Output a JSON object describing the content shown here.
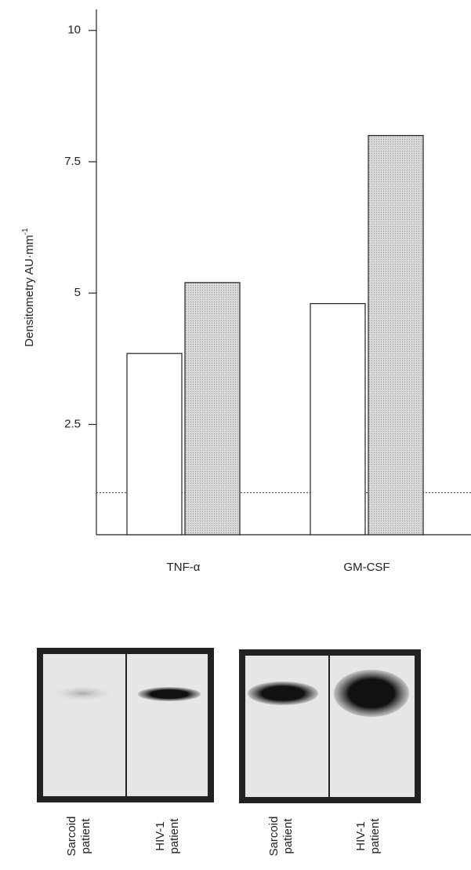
{
  "chart_data": {
    "type": "bar",
    "y_label": "Densitometry AU·mm",
    "y_label_superscript": "-1",
    "categories": [
      "TNF-α",
      "GM-CSF"
    ],
    "series": [
      {
        "color": "#ffffff",
        "values": [
          3.85,
          4.8
        ]
      },
      {
        "color": "#cfcfcf",
        "values": [
          5.2,
          8.0
        ]
      }
    ],
    "ylim": [
      0.4,
      10.4
    ],
    "yticks": [
      2.5,
      5,
      7.5,
      10
    ],
    "reference_line": 1.2
  },
  "blots": {
    "lanes": [
      [
        "Sarcoid",
        "patient"
      ],
      [
        "HIV-1",
        "patient"
      ],
      [
        "Sarcoid",
        "patient"
      ],
      [
        "HIV-1",
        "patient"
      ]
    ]
  }
}
